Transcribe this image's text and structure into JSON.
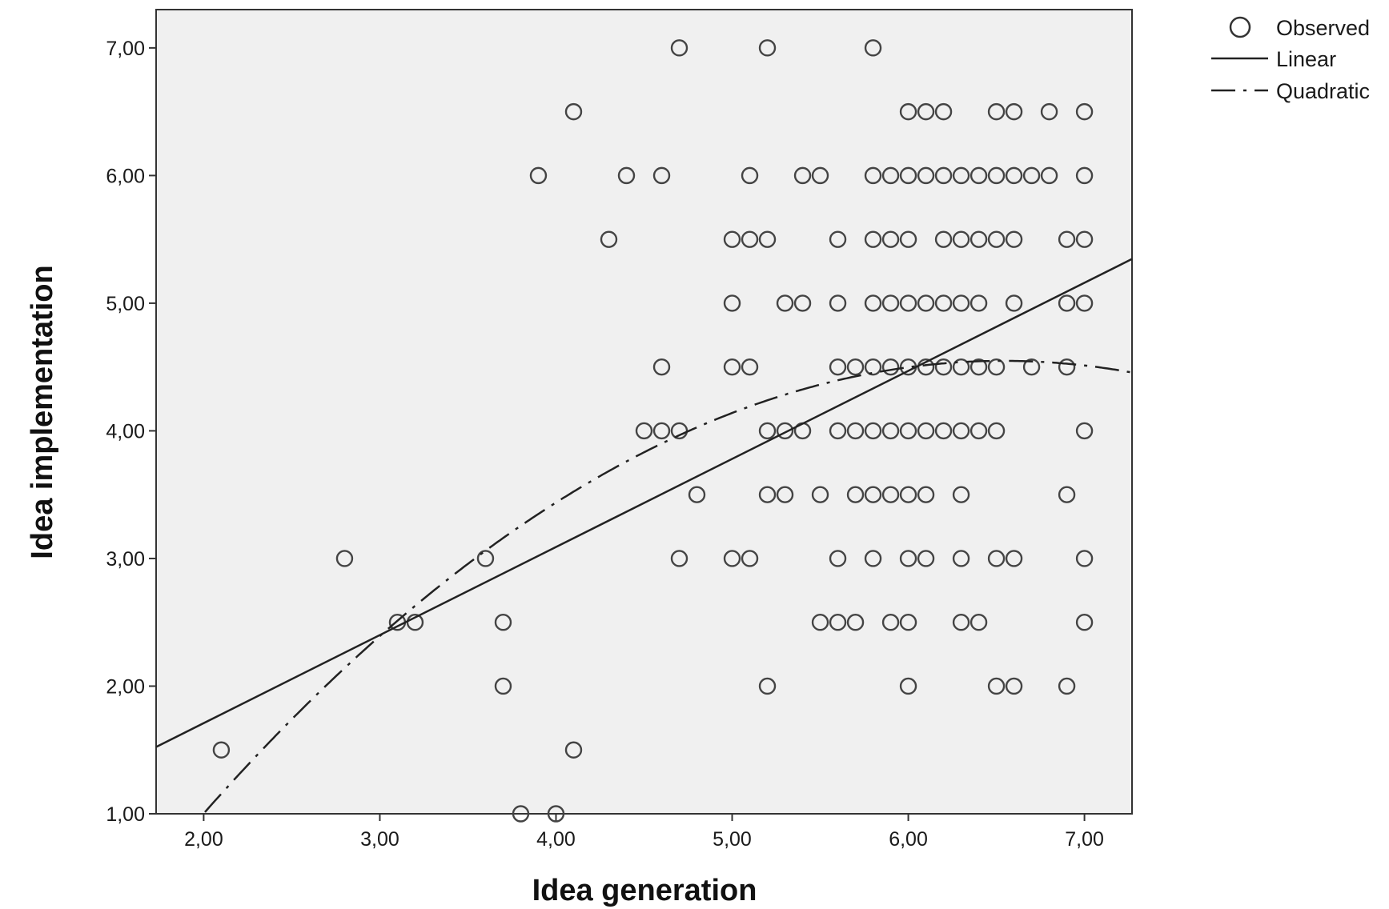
{
  "chart_data": {
    "type": "scatter",
    "xlabel": "Idea generation",
    "ylabel": "Idea implementation",
    "xlim": [
      1.73,
      7.27
    ],
    "ylim": [
      1.0,
      7.3
    ],
    "xticks": [
      2,
      3,
      4,
      5,
      6,
      7
    ],
    "xtick_labels": [
      "2,00",
      "3,00",
      "4,00",
      "5,00",
      "6,00",
      "7,00"
    ],
    "yticks": [
      1,
      2,
      3,
      4,
      5,
      6,
      7
    ],
    "ytick_labels": [
      "1,00",
      "2,00",
      "3,00",
      "4,00",
      "5,00",
      "6,00",
      "7,00"
    ],
    "plot_background": "#f0f0f0",
    "grid": false,
    "legend_placement": "top-right outside",
    "legend": [
      {
        "label": "Observed",
        "kind": "marker"
      },
      {
        "label": "Linear",
        "kind": "solid-line"
      },
      {
        "label": "Quadratic",
        "kind": "dash-dot-line"
      }
    ],
    "observed": [
      [
        4.7,
        7.0
      ],
      [
        5.2,
        7.0
      ],
      [
        5.8,
        7.0
      ],
      [
        4.1,
        6.5
      ],
      [
        6.0,
        6.5
      ],
      [
        6.1,
        6.5
      ],
      [
        6.2,
        6.5
      ],
      [
        6.5,
        6.5
      ],
      [
        6.6,
        6.5
      ],
      [
        6.8,
        6.5
      ],
      [
        7.0,
        6.5
      ],
      [
        3.9,
        6.0
      ],
      [
        4.4,
        6.0
      ],
      [
        4.6,
        6.0
      ],
      [
        5.1,
        6.0
      ],
      [
        5.4,
        6.0
      ],
      [
        5.5,
        6.0
      ],
      [
        5.8,
        6.0
      ],
      [
        5.9,
        6.0
      ],
      [
        6.0,
        6.0
      ],
      [
        6.1,
        6.0
      ],
      [
        6.2,
        6.0
      ],
      [
        6.3,
        6.0
      ],
      [
        6.4,
        6.0
      ],
      [
        6.5,
        6.0
      ],
      [
        6.6,
        6.0
      ],
      [
        6.7,
        6.0
      ],
      [
        6.8,
        6.0
      ],
      [
        7.0,
        6.0
      ],
      [
        4.3,
        5.5
      ],
      [
        5.0,
        5.5
      ],
      [
        5.1,
        5.5
      ],
      [
        5.2,
        5.5
      ],
      [
        5.6,
        5.5
      ],
      [
        5.8,
        5.5
      ],
      [
        5.9,
        5.5
      ],
      [
        6.0,
        5.5
      ],
      [
        6.2,
        5.5
      ],
      [
        6.3,
        5.5
      ],
      [
        6.4,
        5.5
      ],
      [
        6.5,
        5.5
      ],
      [
        6.6,
        5.5
      ],
      [
        6.9,
        5.5
      ],
      [
        7.0,
        5.5
      ],
      [
        5.0,
        5.0
      ],
      [
        5.3,
        5.0
      ],
      [
        5.4,
        5.0
      ],
      [
        5.6,
        5.0
      ],
      [
        5.8,
        5.0
      ],
      [
        5.9,
        5.0
      ],
      [
        6.0,
        5.0
      ],
      [
        6.1,
        5.0
      ],
      [
        6.2,
        5.0
      ],
      [
        6.3,
        5.0
      ],
      [
        6.4,
        5.0
      ],
      [
        6.6,
        5.0
      ],
      [
        6.9,
        5.0
      ],
      [
        7.0,
        5.0
      ],
      [
        4.6,
        4.5
      ],
      [
        5.0,
        4.5
      ],
      [
        5.1,
        4.5
      ],
      [
        5.6,
        4.5
      ],
      [
        5.7,
        4.5
      ],
      [
        5.8,
        4.5
      ],
      [
        5.9,
        4.5
      ],
      [
        6.0,
        4.5
      ],
      [
        6.1,
        4.5
      ],
      [
        6.2,
        4.5
      ],
      [
        6.3,
        4.5
      ],
      [
        6.4,
        4.5
      ],
      [
        6.5,
        4.5
      ],
      [
        6.7,
        4.5
      ],
      [
        6.9,
        4.5
      ],
      [
        4.5,
        4.0
      ],
      [
        4.6,
        4.0
      ],
      [
        4.7,
        4.0
      ],
      [
        5.2,
        4.0
      ],
      [
        5.3,
        4.0
      ],
      [
        5.4,
        4.0
      ],
      [
        5.6,
        4.0
      ],
      [
        5.7,
        4.0
      ],
      [
        5.8,
        4.0
      ],
      [
        5.9,
        4.0
      ],
      [
        6.0,
        4.0
      ],
      [
        6.1,
        4.0
      ],
      [
        6.2,
        4.0
      ],
      [
        6.3,
        4.0
      ],
      [
        6.4,
        4.0
      ],
      [
        6.5,
        4.0
      ],
      [
        7.0,
        4.0
      ],
      [
        4.8,
        3.5
      ],
      [
        5.2,
        3.5
      ],
      [
        5.3,
        3.5
      ],
      [
        5.5,
        3.5
      ],
      [
        5.7,
        3.5
      ],
      [
        5.8,
        3.5
      ],
      [
        5.9,
        3.5
      ],
      [
        6.0,
        3.5
      ],
      [
        6.1,
        3.5
      ],
      [
        6.3,
        3.5
      ],
      [
        6.9,
        3.5
      ],
      [
        2.8,
        3.0
      ],
      [
        3.6,
        3.0
      ],
      [
        4.7,
        3.0
      ],
      [
        5.0,
        3.0
      ],
      [
        5.1,
        3.0
      ],
      [
        5.6,
        3.0
      ],
      [
        5.8,
        3.0
      ],
      [
        6.0,
        3.0
      ],
      [
        6.1,
        3.0
      ],
      [
        6.3,
        3.0
      ],
      [
        6.5,
        3.0
      ],
      [
        6.6,
        3.0
      ],
      [
        7.0,
        3.0
      ],
      [
        3.1,
        2.5
      ],
      [
        3.2,
        2.5
      ],
      [
        3.7,
        2.5
      ],
      [
        5.5,
        2.5
      ],
      [
        5.6,
        2.5
      ],
      [
        5.7,
        2.5
      ],
      [
        5.9,
        2.5
      ],
      [
        6.0,
        2.5
      ],
      [
        6.3,
        2.5
      ],
      [
        6.4,
        2.5
      ],
      [
        7.0,
        2.5
      ],
      [
        3.7,
        2.0
      ],
      [
        5.2,
        2.0
      ],
      [
        6.0,
        2.0
      ],
      [
        6.5,
        2.0
      ],
      [
        6.6,
        2.0
      ],
      [
        6.9,
        2.0
      ],
      [
        2.1,
        1.5
      ],
      [
        4.1,
        1.5
      ],
      [
        3.8,
        1.0
      ],
      [
        4.0,
        1.0
      ]
    ],
    "linear_fit": {
      "intercept": 0.33,
      "slope": 0.69
    },
    "quadratic_fit": {
      "a": -0.172,
      "b": 2.25,
      "c": -2.81
    }
  }
}
